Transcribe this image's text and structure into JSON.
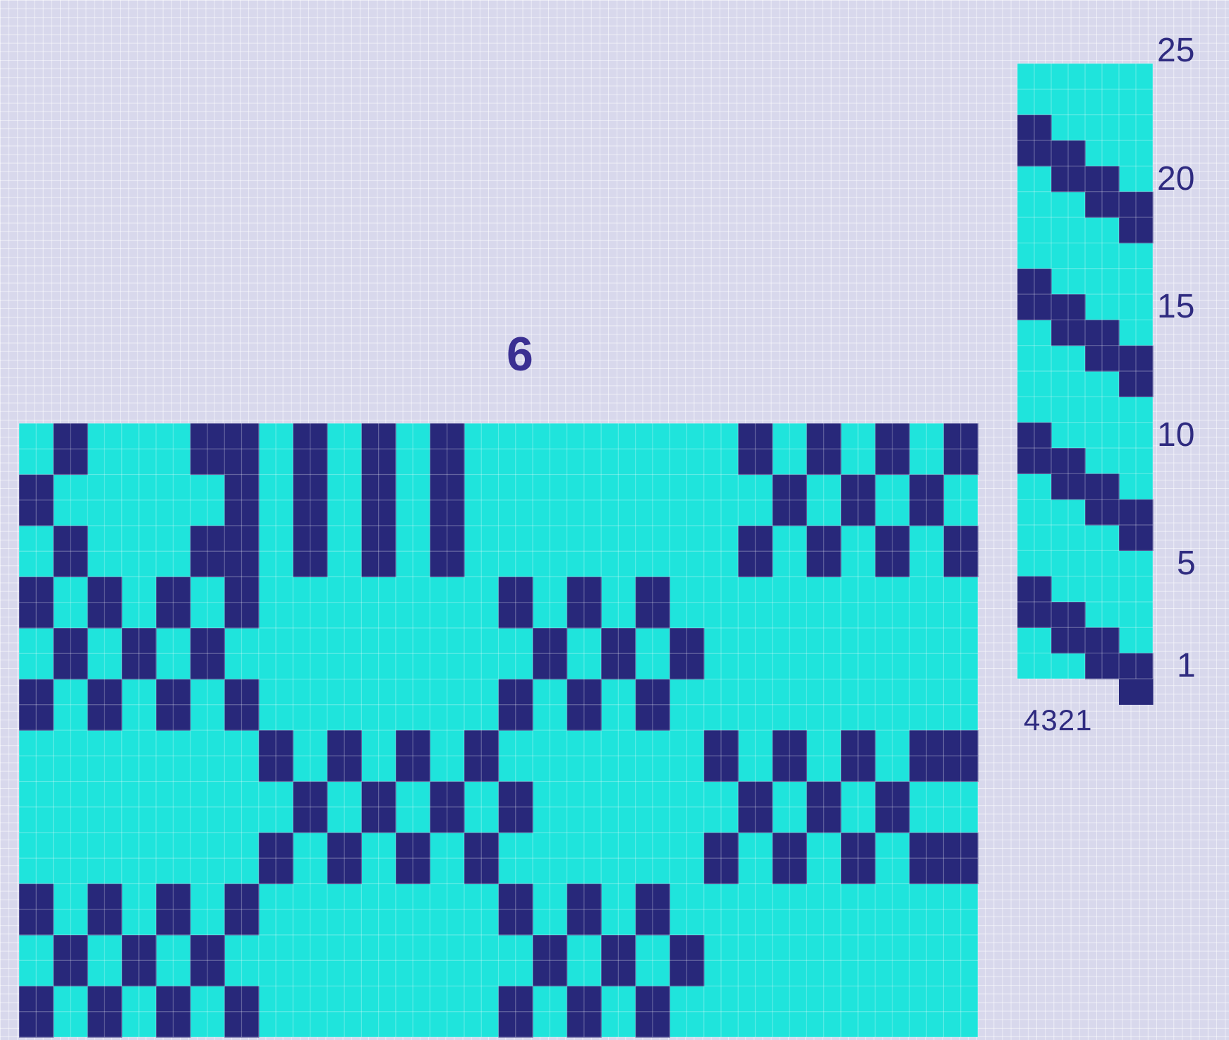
{
  "diagram": {
    "pattern_number": "6",
    "row_numbers": [
      {
        "value": "25",
        "row": 25
      },
      {
        "value": "20",
        "row": 20
      },
      {
        "value": "15",
        "row": 15
      },
      {
        "value": "10",
        "row": 10
      },
      {
        "value": "5",
        "row": 5
      },
      {
        "value": "1",
        "row": 1
      }
    ],
    "shaft_labels": "4321",
    "colors": {
      "light": "#1fe4dc",
      "dark": "#28287a",
      "background": "#d8d8ec",
      "label": "#2f2b80"
    },
    "treadling": {
      "shafts": 4,
      "rows": 24,
      "dark_cells": [
        [
          1,
          1
        ],
        [
          2,
          2
        ],
        [
          3,
          3
        ],
        [
          4,
          4
        ],
        [
          1,
          7
        ],
        [
          2,
          8
        ],
        [
          3,
          9
        ],
        [
          4,
          10
        ],
        [
          1,
          13
        ],
        [
          2,
          14
        ],
        [
          3,
          15
        ],
        [
          4,
          16
        ],
        [
          1,
          19
        ],
        [
          2,
          20
        ],
        [
          3,
          21
        ],
        [
          4,
          22
        ]
      ]
    },
    "pattern": {
      "cols": 28,
      "rows": 24,
      "grid": [
        "0100011010101000000001010101",
        "1000001010101000000000101010",
        "0100011010101000000001010101",
        "1010101000000010101000000000",
        "0101010000000001010100000000",
        "1010101000000010101000000000",
        "0000000101010100000010101011",
        "0000000010101010000001010100",
        "0000000101010100000010101011",
        "1010101000000010101000000000",
        "0101010000000001010100000000",
        "1010101000000010101000000000"
      ]
    }
  }
}
